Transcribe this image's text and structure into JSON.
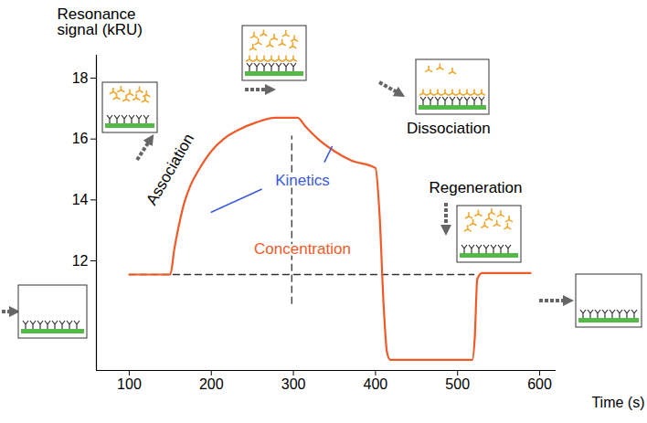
{
  "chart_data": {
    "type": "line",
    "x_label": "Time (s)",
    "y_label": "Resonance signal (kRU)",
    "xlim": [
      60,
      620
    ],
    "xticks": [
      100,
      200,
      300,
      400,
      500,
      600
    ],
    "ylim": [
      8.4,
      18.75
    ],
    "yticks": [
      12,
      14,
      16,
      18
    ],
    "grid": false,
    "color": "#f05a28",
    "x": [
      100,
      150,
      155,
      160,
      167,
      175,
      185,
      200,
      215,
      233,
      255,
      278,
      305,
      315,
      330,
      350,
      370,
      400,
      405,
      410,
      414,
      418,
      518,
      521,
      524,
      530,
      589
    ],
    "values": [
      11.55,
      11.55,
      12.4,
      13.1,
      13.9,
      14.5,
      15.0,
      15.6,
      16.0,
      16.3,
      16.55,
      16.7,
      16.7,
      16.4,
      16.0,
      15.6,
      15.3,
      15.05,
      13.5,
      10.5,
      9.0,
      8.75,
      8.75,
      9.5,
      11.4,
      11.6,
      11.6
    ],
    "reference_lines": [
      {
        "y": 11.55,
        "x": [
          100,
          520
        ],
        "line_style": "dashed",
        "color": "#333333"
      },
      {
        "x": 298,
        "y": [
          10.6,
          16.1
        ],
        "line_style": "dashed",
        "color": "#333333"
      }
    ],
    "annotations": [
      {
        "text": "Association",
        "x": 150,
        "y": 15.0,
        "color": "#000000"
      },
      {
        "text": "Kinetics",
        "x": 311,
        "y": 14.65,
        "color": "#3b5bdb",
        "pointers": [
          {
            "x": [
              200,
              261
            ],
            "y": [
              13.6,
              14.35
            ]
          },
          {
            "x": [
              338,
              347
            ],
            "y": [
              15.25,
              15.75
            ]
          }
        ]
      },
      {
        "text": "Concentration",
        "x": 311,
        "y": 12.4,
        "color": "#f05a28"
      },
      {
        "text": "Dissociation",
        "x": 489,
        "y": 16.35,
        "color": "#000000"
      },
      {
        "text": "Regeneration",
        "x": 522,
        "y": 14.4,
        "color": "#000000"
      }
    ]
  }
}
